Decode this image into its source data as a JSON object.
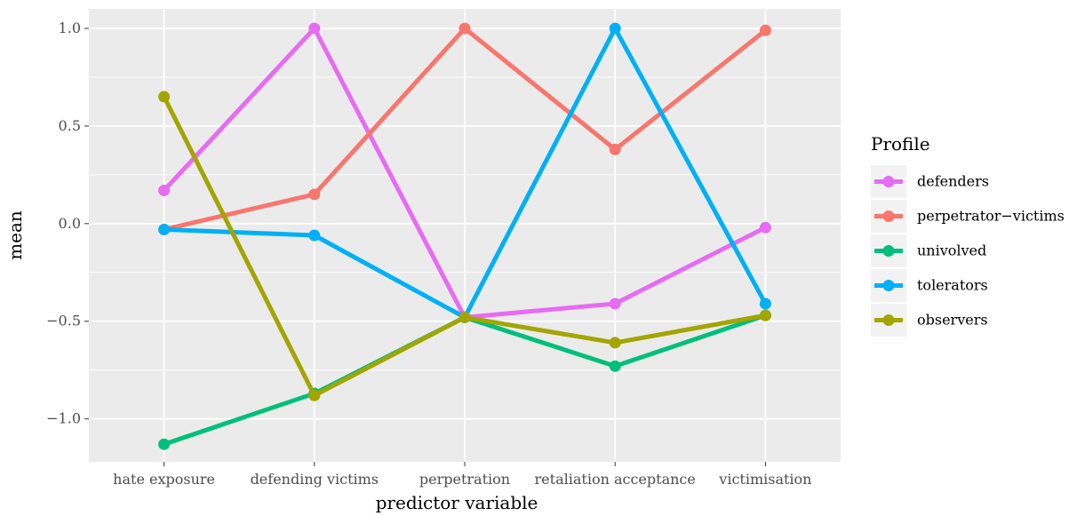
{
  "chart_data": {
    "type": "line",
    "title": "",
    "xlabel": "predictor variable",
    "ylabel": "mean",
    "categories": [
      "hate exposure",
      "defending victims",
      "perpetration",
      "retaliation acceptance",
      "victimisation"
    ],
    "ylim": [
      -1.22,
      1.1
    ],
    "yticks": [
      1.0,
      0.5,
      0.0,
      -0.5,
      -1.0
    ],
    "ytick_labels": [
      "1.0",
      "0.5",
      "0.0",
      "−0.5",
      "−1.0"
    ],
    "grid": true,
    "legend": {
      "title": "Profile",
      "position": "right"
    },
    "series": [
      {
        "name": "defenders",
        "color": "#E76BF3",
        "values": [
          0.17,
          1.0,
          -0.48,
          -0.41,
          -0.02
        ]
      },
      {
        "name": "perpetrator−victims",
        "color": "#F8766D",
        "values": [
          -0.03,
          0.15,
          1.0,
          0.38,
          0.99
        ]
      },
      {
        "name": "univolved",
        "color": "#00BF7D",
        "values": [
          -1.13,
          -0.87,
          -0.48,
          -0.73,
          -0.47
        ]
      },
      {
        "name": "tolerators",
        "color": "#00B0F6",
        "values": [
          -0.03,
          -0.06,
          -0.48,
          1.0,
          -0.41
        ]
      },
      {
        "name": "observers",
        "color": "#A3A500",
        "values": [
          0.65,
          -0.88,
          -0.48,
          -0.61,
          -0.47
        ]
      }
    ]
  }
}
